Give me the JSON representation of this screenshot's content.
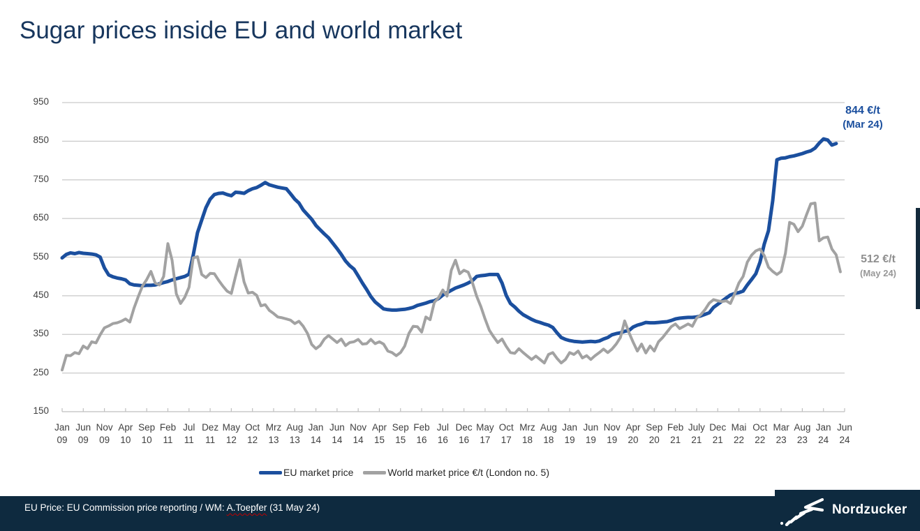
{
  "title": "Sugar prices inside EU and world market",
  "annotations": {
    "eu_last": {
      "value": "844 €/t",
      "date": "(Mar 24)",
      "color": "#1b4f9e"
    },
    "world_last": {
      "value": "512 €/t",
      "date": "(May 24)",
      "color": "#8f8f8f"
    }
  },
  "legend": [
    {
      "label": "EU market price",
      "color": "#1b4f9e"
    },
    {
      "label": "World market price €/t (London no. 5)",
      "color": "#a2a2a2"
    }
  ],
  "footer": {
    "source_prefix": "EU Price: EU Commission price reporting / WM: ",
    "source_name": "A.Toepfer",
    "source_suffix": " (31 May 24)",
    "logo_text": "Nordzucker",
    "bg_color": "#0e2a3f"
  },
  "colors": {
    "title": "#17365d",
    "gridline": "#c9c9c9",
    "axis_line": "#bfbfbf",
    "axis_text": "#3f3f3f",
    "accent_bar": "#13293b"
  },
  "chart_data": {
    "type": "line",
    "title": "Sugar prices inside EU and world market",
    "xlabel": "",
    "ylabel": "€/t",
    "x_interval": "monthly",
    "x_start": "Jan 2009",
    "x_end": "Jun 2024",
    "months_total": 186,
    "ylim": [
      150,
      950
    ],
    "yticks": [
      950,
      850,
      750,
      650,
      550,
      450,
      350,
      250,
      150
    ],
    "grid": true,
    "legend_position": "bottom",
    "tick_labels": [
      "Jan 09",
      "Jun 09",
      "Nov 09",
      "Apr 10",
      "Sep 10",
      "Feb 11",
      "Jul 11",
      "Dez 11",
      "May 12",
      "Oct 12",
      "Mrz 13",
      "Aug 13",
      "Jan 14",
      "Jun 14",
      "Nov 14",
      "Apr 15",
      "Sep 15",
      "Feb 16",
      "Jul 16",
      "Dec 16",
      "May 17",
      "Oct 17",
      "Mrz 18",
      "Aug 18",
      "Jan 19",
      "Jun 19",
      "Nov 19",
      "Apr 20",
      "Sep 20",
      "Feb 21",
      "July 21",
      "Dec 21",
      "Mai 22",
      "Oct 22",
      "Mar 23",
      "Aug 23",
      "Jan 24",
      "Jun 24"
    ],
    "tick_interval_months": 5,
    "series": [
      {
        "name": "EU market price",
        "color": "#1b4f9e",
        "width": 5,
        "last_point": {
          "label": "Mar 24",
          "value": 844
        },
        "values": [
          548,
          557,
          561,
          559,
          562,
          560,
          559,
          558,
          556,
          550,
          522,
          504,
          499,
          496,
          494,
          491,
          481,
          478,
          477,
          476,
          477,
          477,
          478,
          481,
          484,
          487,
          491,
          494,
          497,
          500,
          506,
          555,
          613,
          646,
          678,
          700,
          712,
          715,
          716,
          712,
          709,
          718,
          717,
          715,
          722,
          727,
          730,
          736,
          743,
          737,
          734,
          731,
          729,
          727,
          714,
          700,
          690,
          672,
          660,
          648,
          632,
          621,
          610,
          600,
          586,
          572,
          557,
          540,
          528,
          519,
          501,
          483,
          466,
          448,
          434,
          425,
          416,
          414,
          413,
          413,
          414,
          415,
          417,
          420,
          425,
          428,
          431,
          435,
          437,
          443,
          452,
          458,
          464,
          470,
          474,
          478,
          483,
          489,
          500,
          502,
          503,
          505,
          505,
          505,
          483,
          451,
          430,
          421,
          410,
          401,
          395,
          389,
          384,
          381,
          377,
          374,
          368,
          354,
          342,
          337,
          334,
          332,
          331,
          330,
          331,
          332,
          331,
          333,
          338,
          342,
          349,
          352,
          354,
          358,
          360,
          369,
          374,
          377,
          381,
          380,
          380,
          381,
          382,
          383,
          386,
          390,
          392,
          393,
          394,
          394,
          395,
          398,
          402,
          406,
          420,
          428,
          436,
          444,
          452,
          456,
          458,
          462,
          478,
          492,
          507,
          537,
          584,
          618,
          696,
          802,
          806,
          807,
          810,
          812,
          815,
          818,
          822,
          825,
          832,
          845,
          856,
          853,
          840,
          844,
          null,
          null
        ]
      },
      {
        "name": "World market price €/t (London no. 5)",
        "color": "#a2a2a2",
        "width": 4,
        "last_point": {
          "label": "May 24",
          "value": 512
        },
        "values": [
          258,
          296,
          295,
          303,
          300,
          320,
          313,
          331,
          328,
          349,
          367,
          372,
          378,
          380,
          384,
          390,
          382,
          418,
          448,
          475,
          492,
          513,
          483,
          478,
          500,
          585,
          542,
          455,
          430,
          446,
          472,
          548,
          551,
          505,
          497,
          508,
          507,
          490,
          475,
          462,
          456,
          500,
          543,
          486,
          457,
          459,
          451,
          424,
          427,
          412,
          404,
          395,
          393,
          390,
          387,
          378,
          384,
          371,
          353,
          324,
          313,
          321,
          338,
          347,
          338,
          329,
          338,
          321,
          329,
          331,
          337,
          325,
          326,
          337,
          326,
          331,
          325,
          307,
          303,
          295,
          303,
          320,
          353,
          371,
          370,
          356,
          395,
          388,
          433,
          445,
          465,
          449,
          516,
          542,
          507,
          516,
          511,
          484,
          449,
          422,
          390,
          361,
          344,
          329,
          338,
          319,
          303,
          301,
          313,
          303,
          294,
          285,
          294,
          285,
          276,
          298,
          303,
          288,
          276,
          285,
          303,
          298,
          307,
          289,
          295,
          285,
          295,
          303,
          312,
          303,
          312,
          325,
          342,
          385,
          355,
          330,
          307,
          325,
          302,
          320,
          307,
          331,
          342,
          356,
          370,
          377,
          365,
          371,
          377,
          371,
          392,
          401,
          414,
          431,
          440,
          437,
          435,
          437,
          430,
          455,
          483,
          500,
          537,
          555,
          566,
          571,
          554,
          524,
          513,
          505,
          513,
          560,
          640,
          635,
          616,
          630,
          660,
          688,
          690,
          592,
          600,
          602,
          571,
          556,
          512,
          null
        ]
      }
    ]
  }
}
